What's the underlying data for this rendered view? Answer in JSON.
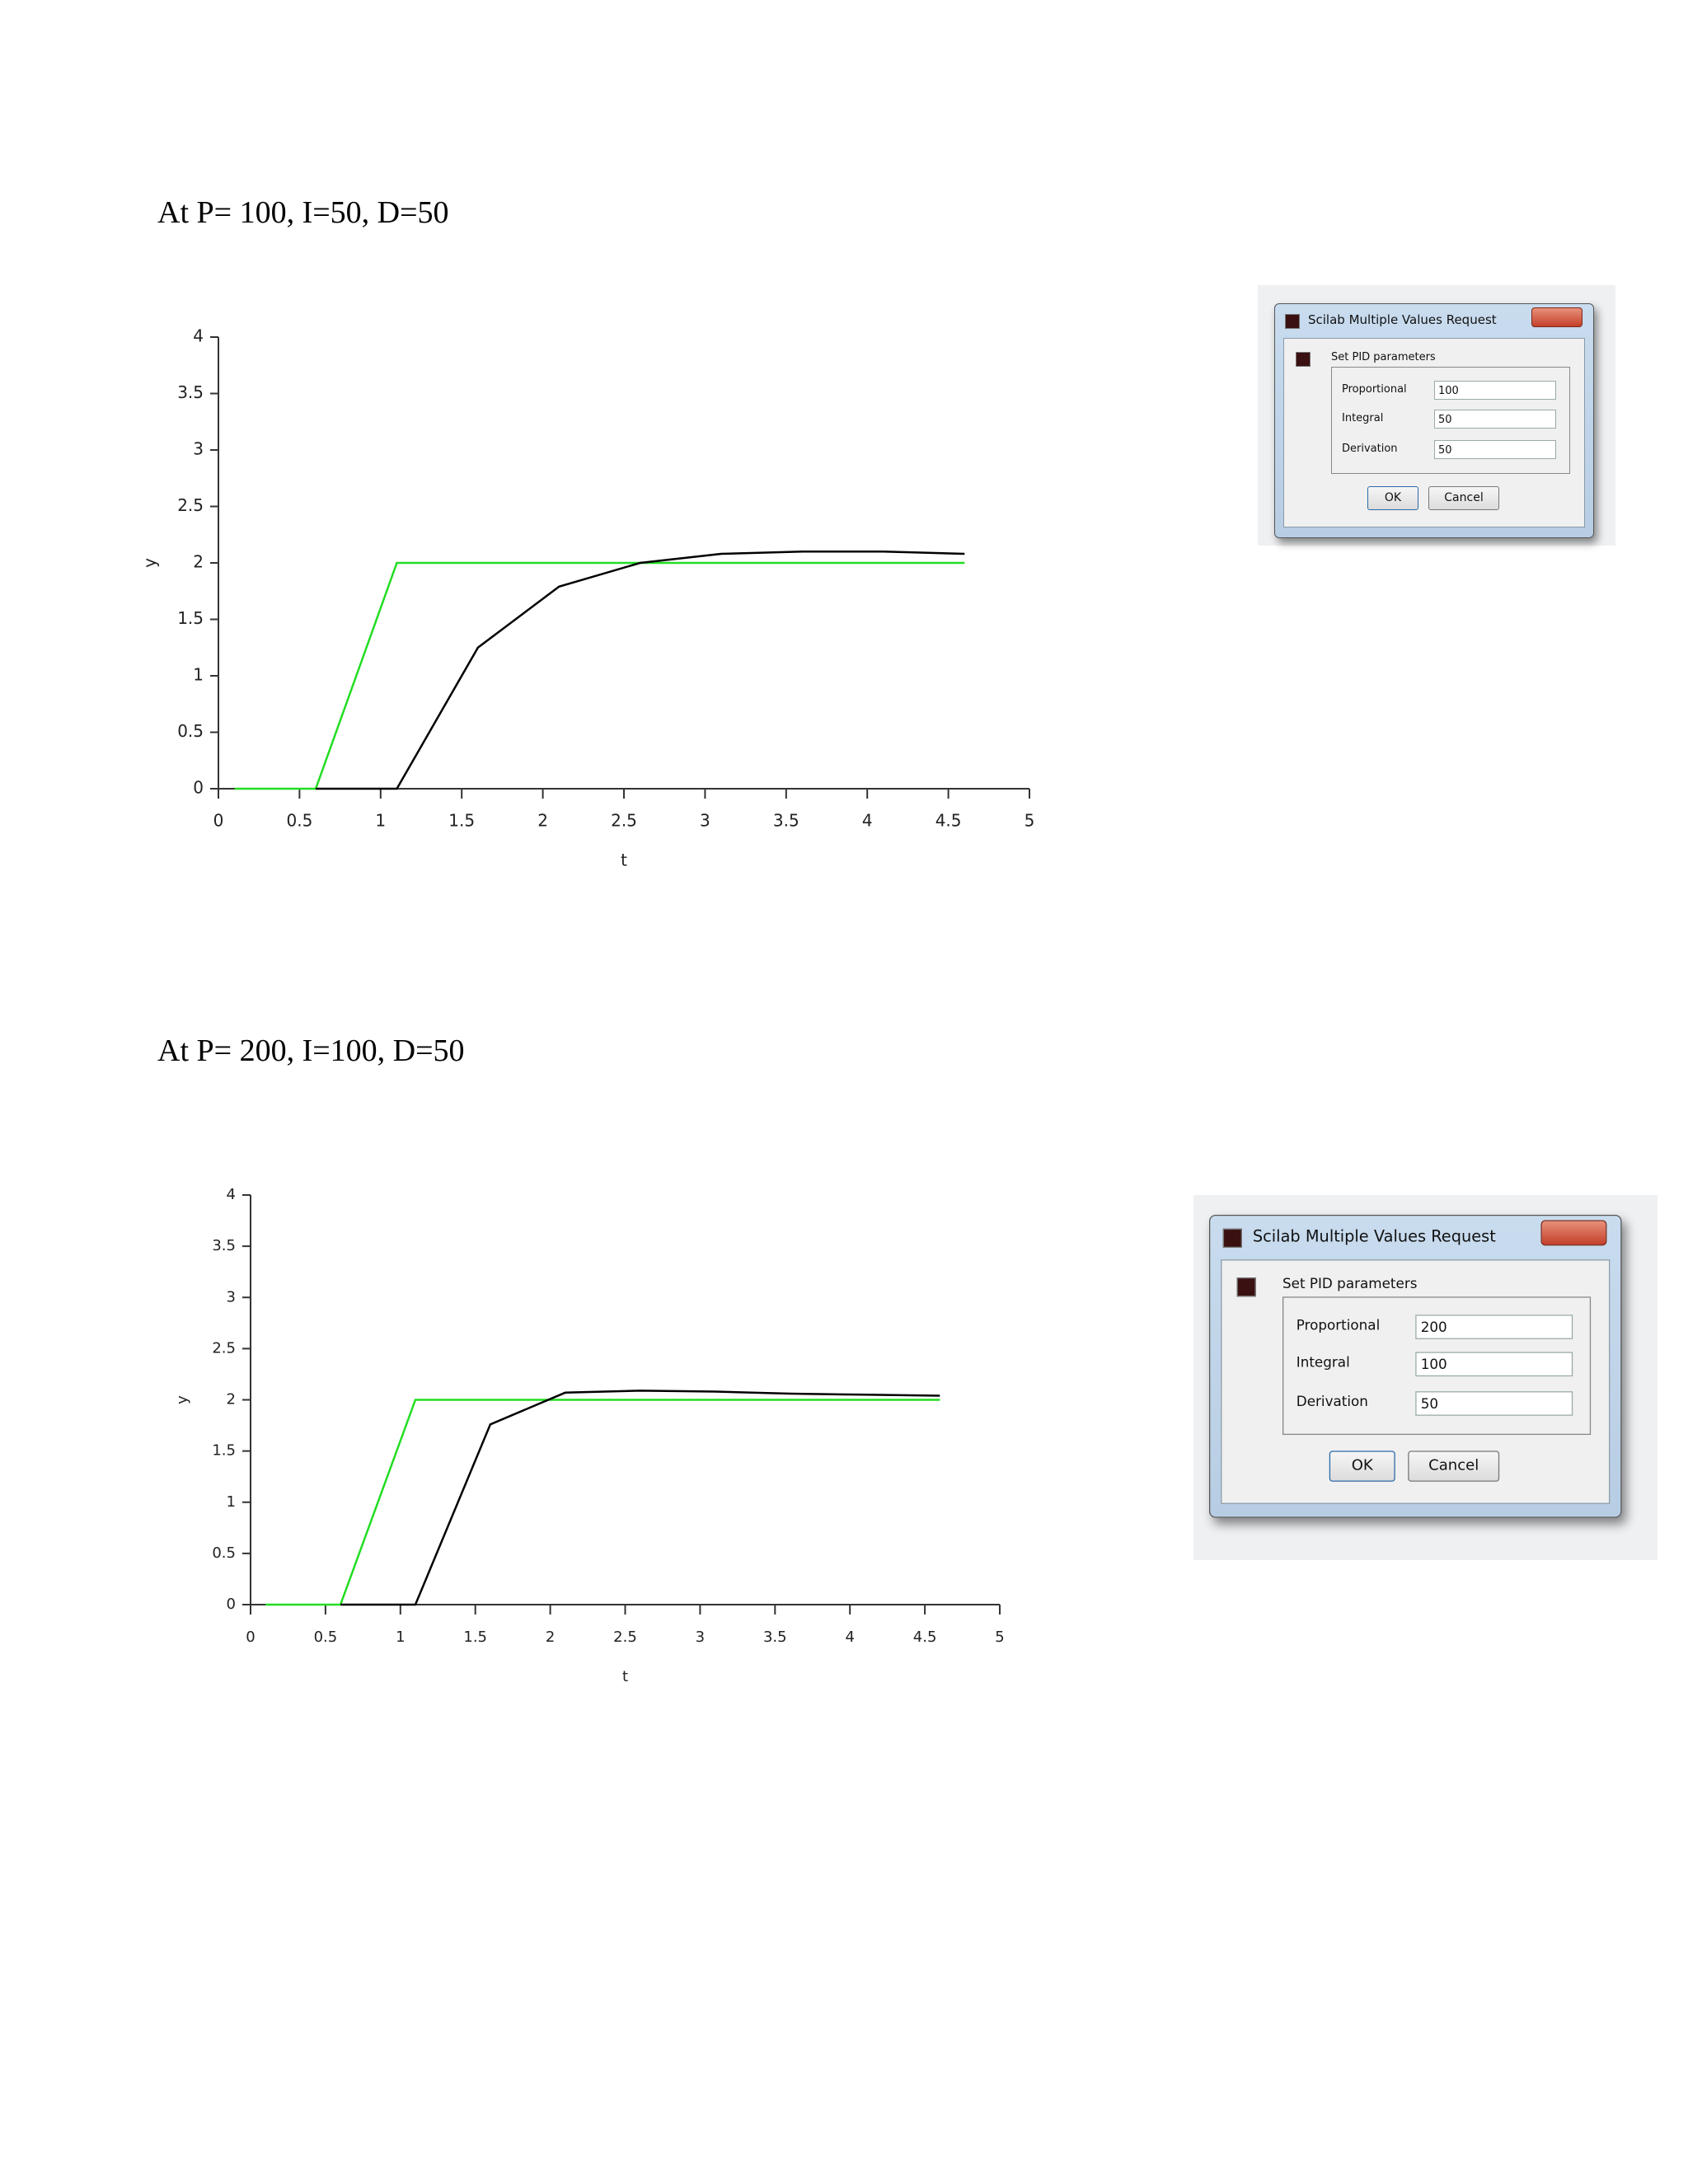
{
  "headings": [
    "At P= 100, I=50, D=50",
    "At P= 200, I=100, D=50"
  ],
  "chart_data": [
    {
      "type": "line",
      "xlabel": "t",
      "ylabel": "y",
      "xlim": [
        0,
        5
      ],
      "xticks": [
        0,
        0.5,
        1,
        1.5,
        2,
        2.5,
        3,
        3.5,
        4,
        4.5,
        5
      ],
      "ylim": [
        0,
        4
      ],
      "yticks": [
        0,
        0.5,
        1,
        1.5,
        2,
        2.5,
        3,
        3.5,
        4
      ],
      "series": [
        {
          "color": "#22dd22",
          "x": [
            0.1,
            0.6,
            1.1,
            4.6
          ],
          "values": [
            0,
            0,
            2,
            2
          ]
        },
        {
          "color": "#000000",
          "x": [
            0.6,
            1.1,
            1.6,
            2.1,
            2.6,
            3.1,
            3.6,
            4.1,
            4.6
          ],
          "values": [
            0,
            0,
            1.25,
            1.79,
            2.0,
            2.08,
            2.1,
            2.1,
            2.08
          ]
        }
      ]
    },
    {
      "type": "line",
      "xlabel": "t",
      "ylabel": "y",
      "xlim": [
        0,
        5
      ],
      "xticks": [
        0,
        0.5,
        1,
        1.5,
        2,
        2.5,
        3,
        3.5,
        4,
        4.5,
        5
      ],
      "ylim": [
        0,
        4
      ],
      "yticks": [
        0,
        0.5,
        1,
        1.5,
        2,
        2.5,
        3,
        3.5,
        4
      ],
      "series": [
        {
          "color": "#22dd22",
          "x": [
            0.1,
            0.6,
            1.1,
            4.6
          ],
          "values": [
            0,
            0,
            2,
            2
          ]
        },
        {
          "color": "#000000",
          "x": [
            0.6,
            1.1,
            1.6,
            2.1,
            2.6,
            3.1,
            3.6,
            4.1,
            4.6
          ],
          "values": [
            0,
            0,
            1.76,
            2.07,
            2.09,
            2.08,
            2.06,
            2.05,
            2.04
          ]
        }
      ]
    }
  ],
  "dialogs": [
    {
      "title": "Scilab Multiple Values Request",
      "group": "Set PID parameters",
      "fields": [
        {
          "label": "Proportional",
          "value": "100"
        },
        {
          "label": "Integral",
          "value": "50"
        },
        {
          "label": "Derivation",
          "value": "50"
        }
      ],
      "buttons": [
        "OK",
        "Cancel"
      ]
    },
    {
      "title": "Scilab Multiple Values Request",
      "group": "Set PID parameters",
      "fields": [
        {
          "label": "Proportional",
          "value": "200"
        },
        {
          "label": "Integral",
          "value": "100"
        },
        {
          "label": "Derivation",
          "value": "50"
        }
      ],
      "buttons": [
        "OK",
        "Cancel"
      ]
    }
  ]
}
